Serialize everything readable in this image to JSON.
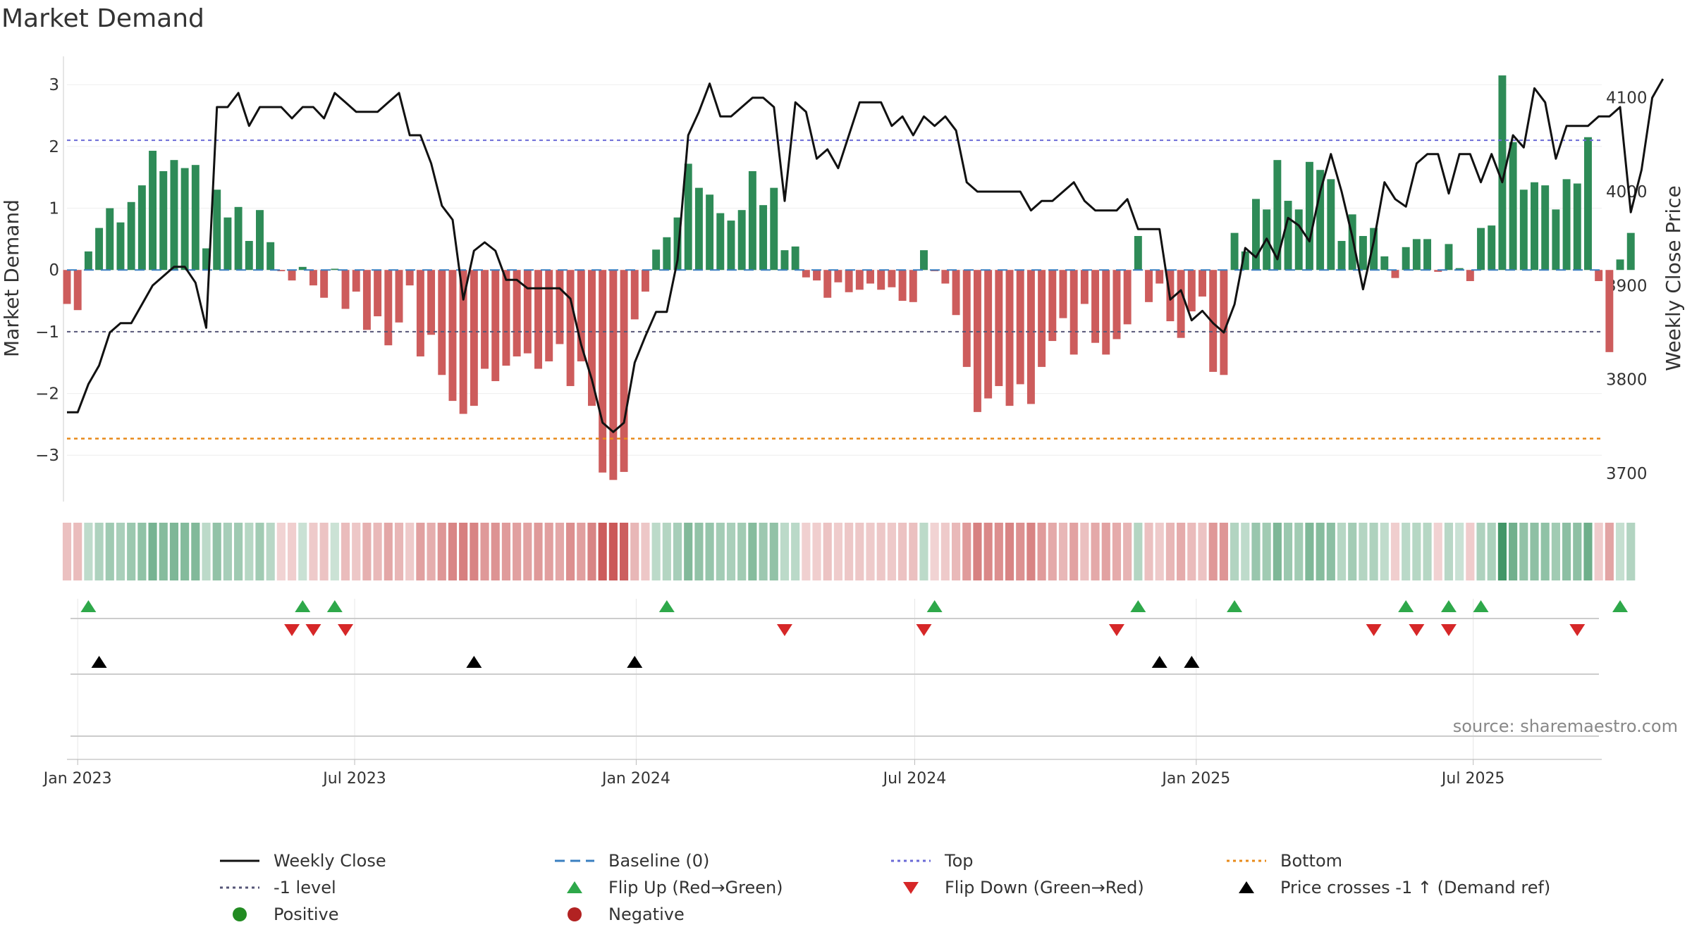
{
  "title": "Market Demand",
  "source": "source: sharemaestro.com",
  "colors": {
    "positive": "#2e8b57",
    "negative": "#cd5c5c",
    "price": "#111111",
    "top": "#6a6ad6",
    "bottom": "#e88a1a",
    "minus_one": "#555577",
    "baseline": "#3a7fc0",
    "flip_up": "#2ea84a",
    "flip_down": "#d62728",
    "cross": "#000000"
  },
  "chart_data": {
    "type": "bar",
    "title": "Market Demand",
    "ylabel": "Market Demand",
    "y2label": "Weekly Close Price",
    "ylim": [
      -3.75,
      3.55
    ],
    "y2lim": [
      3670,
      4150
    ],
    "yticks": [
      -3,
      -2,
      -1,
      0,
      1,
      2,
      3
    ],
    "y2ticks": [
      3700,
      3800,
      3900,
      4000,
      4100
    ],
    "x_start": "2022-12-25",
    "x_end": "2025-09-23",
    "xticks": [
      {
        "label": "Jan 2023",
        "date": "2023-01-01"
      },
      {
        "label": "Jul 2023",
        "date": "2023-07-01"
      },
      {
        "label": "Jan 2024",
        "date": "2024-01-01"
      },
      {
        "label": "Jul 2024",
        "date": "2024-07-01"
      },
      {
        "label": "Jan 2025",
        "date": "2025-01-01"
      },
      {
        "label": "Jul 2025",
        "date": "2025-07-01"
      }
    ],
    "first_week": "2022-12-25",
    "week_days": 7,
    "demand": [
      -0.55,
      -0.65,
      0.3,
      0.68,
      1.0,
      0.77,
      1.1,
      1.37,
      1.93,
      1.6,
      1.78,
      1.65,
      1.7,
      0.35,
      1.3,
      0.85,
      1.02,
      0.47,
      0.97,
      0.45,
      -0.02,
      -0.17,
      0.05,
      -0.25,
      -0.45,
      0.02,
      -0.63,
      -0.35,
      -0.97,
      -0.75,
      -1.22,
      -0.85,
      -0.25,
      -1.4,
      -1.05,
      -1.7,
      -2.12,
      -2.33,
      -2.2,
      -1.6,
      -1.8,
      -1.55,
      -1.4,
      -1.35,
      -1.6,
      -1.48,
      -1.2,
      -1.88,
      -1.48,
      -2.2,
      -3.28,
      -3.4,
      -3.27,
      -0.8,
      -0.35,
      0.33,
      0.53,
      0.85,
      1.72,
      1.33,
      1.22,
      0.92,
      0.8,
      0.97,
      1.6,
      1.05,
      1.33,
      0.32,
      0.38,
      -0.12,
      -0.17,
      -0.45,
      -0.2,
      -0.36,
      -0.32,
      -0.22,
      -0.32,
      -0.28,
      -0.5,
      -0.52,
      0.32,
      -0.02,
      -0.22,
      -0.73,
      -1.57,
      -2.3,
      -2.08,
      -1.88,
      -2.2,
      -1.85,
      -2.17,
      -1.57,
      -1.15,
      -0.78,
      -1.37,
      -0.55,
      -1.18,
      -1.37,
      -1.12,
      -0.88,
      0.55,
      -0.52,
      -0.22,
      -0.83,
      -1.1,
      -0.67,
      -0.43,
      -1.65,
      -1.7,
      0.6,
      0.3,
      1.15,
      0.98,
      1.78,
      1.12,
      0.98,
      1.75,
      1.62,
      1.47,
      0.47,
      0.9,
      0.55,
      0.68,
      0.22,
      -0.13,
      0.37,
      0.5,
      0.5,
      -0.03,
      0.42,
      0.03,
      -0.18,
      0.68,
      0.72,
      3.15,
      2.07,
      1.3,
      1.42,
      1.37,
      0.98,
      1.47,
      1.4,
      2.15,
      -0.18,
      -1.33,
      0.17,
      0.6
    ],
    "price": [
      3765,
      3765,
      3795,
      3815,
      3850,
      3860,
      3860,
      3880,
      3900,
      3910,
      3920,
      3920,
      3903,
      3855,
      4090,
      4090,
      4105,
      4070,
      4090,
      4090,
      4090,
      4078,
      4090,
      4090,
      4078,
      4105,
      4095,
      4085,
      4085,
      4085,
      4095,
      4105,
      4060,
      4060,
      4030,
      3985,
      3970,
      3885,
      3937,
      3946,
      3937,
      3906,
      3906,
      3897,
      3897,
      3897,
      3897,
      3886,
      3837,
      3800,
      3754,
      3744,
      3754,
      3818,
      3846,
      3872,
      3872,
      3927,
      4060,
      4085,
      4115,
      4080,
      4080,
      4090,
      4100,
      4100,
      4090,
      3990,
      4095,
      4085,
      4035,
      4045,
      4025,
      4060,
      4095,
      4095,
      4095,
      4070,
      4080,
      4060,
      4080,
      4070,
      4080,
      4065,
      4010,
      4000,
      4000,
      4000,
      4000,
      4000,
      3980,
      3990,
      3990,
      4000,
      4010,
      3990,
      3980,
      3980,
      3980,
      3992,
      3960,
      3960,
      3960,
      3885,
      3895,
      3863,
      3873,
      3860,
      3850,
      3880,
      3940,
      3930,
      3950,
      3928,
      3972,
      3964,
      3947,
      4000,
      4040,
      4000,
      3952,
      3896,
      3947,
      4010,
      3992,
      3984,
      4030,
      4040,
      4040,
      3998,
      4040,
      4040,
      4010,
      4040,
      4010,
      4060,
      4047,
      4110,
      4095,
      4035,
      4070,
      4070,
      4070,
      4080,
      4080,
      4090,
      3978,
      4023,
      4100,
      4120
    ],
    "flip_up": [
      2,
      22,
      25,
      56,
      81,
      100,
      109,
      125,
      129,
      132,
      145
    ],
    "flip_down": [
      21,
      23,
      26,
      67,
      80,
      98,
      122,
      126,
      129,
      141
    ],
    "price_cross": [
      3,
      38,
      53,
      102,
      105
    ],
    "series": [
      {
        "name": "Market Demand",
        "key": "demand",
        "axis": "left"
      },
      {
        "name": "Weekly Close",
        "key": "price",
        "axis": "right"
      }
    ],
    "reference_lines": [
      {
        "name": "Top",
        "value": 2.1
      },
      {
        "name": "Bottom",
        "value": -2.73
      },
      {
        "name": "-1 level",
        "value": -1
      },
      {
        "name": "Baseline (0)",
        "value": 0
      }
    ]
  },
  "legend": [
    {
      "label": "Weekly Close",
      "kind": "solid",
      "color": "#111111"
    },
    {
      "label": "Baseline (0)",
      "kind": "dash",
      "color": "#3a7fc0"
    },
    {
      "label": "Top",
      "kind": "dot",
      "color": "#6a6ad6"
    },
    {
      "label": "Bottom",
      "kind": "dot",
      "color": "#e88a1a"
    },
    {
      "label": "-1 level",
      "kind": "dot",
      "color": "#555577"
    },
    {
      "label": "Flip Up (Red→Green)",
      "kind": "tri-up",
      "color": "#2ea84a"
    },
    {
      "label": "Flip Down (Green→Red)",
      "kind": "tri-down",
      "color": "#d62728"
    },
    {
      "label": "Price crosses -1 ↑ (Demand ref)",
      "kind": "tri-up",
      "color": "#000000"
    },
    {
      "label": "Positive",
      "kind": "circle",
      "color": "#228b22"
    },
    {
      "label": "Negative",
      "kind": "circle",
      "color": "#b22222"
    }
  ]
}
